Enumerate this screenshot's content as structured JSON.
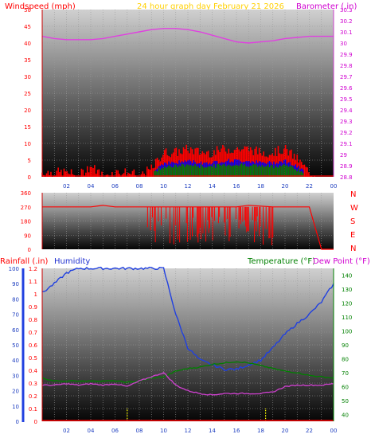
{
  "header": {
    "windspeed_label": "Windspeed (mph)",
    "title": "24 hour graph day   February 21 2026",
    "barometer_label": "Barometer (.in)"
  },
  "lower_header": {
    "rainfall_label": "Rainfall (.in)",
    "humidity_label": "Humidity",
    "temperature_label": "Temperature (°F)",
    "dewpoint_label": "Dew Point (°F)"
  },
  "colors": {
    "windspeed": "#ff0000",
    "gust_mid": "#0000ff",
    "wind_avg": "#008000",
    "barometer": "#e040e0",
    "direction": "#ff0000",
    "rainfall": "#ff0000",
    "humidity": "#2040e0",
    "temperature": "#008000",
    "dewpoint": "#d040d0",
    "compass": "#ff0000",
    "title": "#ffd000",
    "hour_marker": "#ffff00"
  },
  "chart_data": [
    {
      "type": "area",
      "x_ticks": [
        "02",
        "04",
        "06",
        "08",
        "10",
        "12",
        "14",
        "16",
        "18",
        "20",
        "22",
        "00"
      ],
      "left_axis": {
        "ticks": [
          "0",
          "5",
          "10",
          "15",
          "20",
          "25",
          "30",
          "35",
          "40",
          "45",
          "50"
        ],
        "range": [
          0,
          50
        ]
      },
      "right_axis": {
        "ticks": [
          "28.8",
          "28.9",
          "29",
          "29.1",
          "29.2",
          "29.3",
          "29.4",
          "29.5",
          "29.6",
          "29.7",
          "29.8",
          "29.9",
          "30",
          "30.1",
          "30.2",
          "30.3"
        ],
        "range": [
          28.8,
          30.3
        ]
      },
      "series": [
        {
          "name": "Windspeed (mph)",
          "x_hours": [
            0,
            2,
            3,
            4,
            5,
            6,
            7,
            8,
            9,
            10,
            11,
            12,
            13,
            14,
            15,
            16,
            17,
            18,
            19,
            20,
            21,
            22,
            23,
            24
          ],
          "values": [
            1,
            1,
            0,
            3,
            0,
            1,
            1,
            0,
            2,
            7,
            7,
            8,
            7,
            7,
            8,
            8,
            8,
            7,
            7,
            8,
            5,
            1,
            0,
            0
          ]
        },
        {
          "name": "Barometer (.in)",
          "x_hours": [
            0,
            1,
            2,
            3,
            4,
            5,
            6,
            7,
            8,
            9,
            10,
            11,
            12,
            13,
            14,
            15,
            16,
            17,
            18,
            19,
            20,
            21,
            22,
            23,
            24
          ],
          "values": [
            30.06,
            30.04,
            30.03,
            30.03,
            30.03,
            30.04,
            30.06,
            30.08,
            30.1,
            30.12,
            30.13,
            30.13,
            30.12,
            30.1,
            30.07,
            30.04,
            30.01,
            30.0,
            30.01,
            30.02,
            30.04,
            30.05,
            30.06,
            30.06,
            30.06
          ]
        }
      ]
    },
    {
      "type": "line",
      "x_ticks": [
        "02",
        "04",
        "06",
        "08",
        "10",
        "12",
        "14",
        "16",
        "18",
        "20",
        "22",
        "00"
      ],
      "left_axis": {
        "ticks": [
          "0",
          "90",
          "180",
          "270",
          "360"
        ],
        "range": [
          0,
          360
        ]
      },
      "compass": [
        "N",
        "W",
        "S",
        "E",
        "N"
      ],
      "series": [
        {
          "name": "Wind direction",
          "x_hours": [
            0,
            4,
            5,
            6,
            7,
            8,
            9,
            10,
            11,
            12,
            13,
            14,
            15,
            16,
            17,
            18,
            19,
            20,
            21,
            22,
            23,
            24
          ],
          "values": [
            270,
            270,
            280,
            270,
            270,
            270,
            270,
            270,
            270,
            270,
            270,
            270,
            270,
            270,
            280,
            275,
            270,
            270,
            270,
            270,
            0,
            0
          ]
        }
      ]
    },
    {
      "type": "line",
      "x_ticks": [
        "02",
        "04",
        "06",
        "08",
        "10",
        "12",
        "14",
        "16",
        "18",
        "20",
        "22",
        "00"
      ],
      "left_axis": {
        "ticks": [
          "0",
          "0.1",
          "0.2",
          "0.3",
          "0.4",
          "0.5",
          "0.6",
          "0.7",
          "0.8",
          "0.9",
          "1",
          "1.1",
          "1.2"
        ],
        "range": [
          0,
          1.2
        ]
      },
      "humidity_axis": {
        "ticks": [
          "0",
          "10",
          "20",
          "30",
          "40",
          "50",
          "60",
          "70",
          "80",
          "90",
          "100"
        ],
        "range": [
          0,
          100
        ]
      },
      "right_axis": {
        "ticks": [
          "40",
          "50",
          "60",
          "70",
          "80",
          "90",
          "100",
          "110",
          "120",
          "130",
          "140"
        ],
        "range": [
          35,
          145
        ]
      },
      "series": [
        {
          "name": "Humidity",
          "x_hours": [
            0,
            1,
            2,
            3,
            4,
            5,
            6,
            7,
            8,
            9,
            10,
            11,
            12,
            13,
            14,
            15,
            16,
            17,
            18,
            19,
            20,
            21,
            22,
            23,
            24
          ],
          "values": [
            84,
            90,
            97,
            100,
            100,
            100,
            100,
            100,
            100,
            100,
            100,
            70,
            48,
            40,
            37,
            34,
            34,
            37,
            40,
            48,
            57,
            64,
            70,
            78,
            90
          ]
        },
        {
          "name": "Temperature (°F)",
          "x_hours": [
            0,
            1,
            2,
            3,
            4,
            5,
            6,
            7,
            8,
            9,
            10,
            11,
            12,
            13,
            14,
            15,
            16,
            17,
            18,
            19,
            20,
            21,
            22,
            23,
            24
          ],
          "values": [
            66,
            64,
            64,
            64,
            64,
            64,
            64,
            63,
            64,
            66,
            67,
            71,
            73,
            74,
            76,
            77,
            78,
            77,
            75,
            73,
            71,
            70,
            68,
            67,
            66
          ]
        },
        {
          "name": "Dew Point (°F)",
          "x_hours": [
            0,
            1,
            2,
            3,
            4,
            5,
            6,
            7,
            8,
            9,
            10,
            11,
            12,
            13,
            14,
            15,
            16,
            17,
            18,
            19,
            20,
            21,
            22,
            23,
            24
          ],
          "values": [
            61,
            61,
            62,
            61,
            62,
            61,
            62,
            60,
            64,
            67,
            70,
            61,
            57,
            55,
            54,
            55,
            55,
            55,
            55,
            56,
            60,
            61,
            61,
            61,
            62
          ]
        },
        {
          "name": "Rainfall (.in)",
          "x_hours": [
            0,
            24
          ],
          "values": [
            0,
            0
          ]
        }
      ]
    }
  ]
}
